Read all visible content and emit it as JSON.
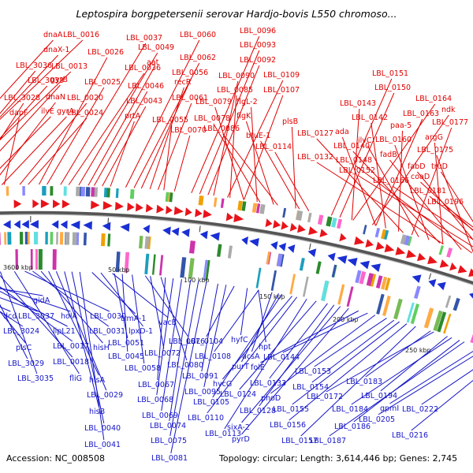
{
  "title": "Leptospira borgpetersenii serovar Hardjo-bovis L550 chromoso...",
  "accession": "Accession: NC_008508",
  "stats": "Topology: circular; Length: 3,614,446 bp; Genes: 2,745",
  "colors": {
    "forward": "#e8141a",
    "reverse": "#1a2fd4",
    "backbone": "#777777",
    "label_fwd": "#e00000",
    "label_rev": "#1414c8"
  },
  "ticks": [
    "3600 kbp",
    "50 kbp",
    "100 kbp",
    "150 kbp",
    "200 kbp",
    "250 kbp"
  ],
  "forward_labels": [
    "dnaA",
    "LBL_0016",
    "dnaX-1",
    "LBL_3036",
    "LBL_0013",
    "LBL_3033",
    "gyrB",
    "LBL_3028",
    "ilvE",
    "dnaN",
    "gyrA",
    "dapF",
    "LBL_0020",
    "LBL_0024",
    "LBL_0026",
    "LBL_0025",
    "LBL_0037",
    "LBL_0036",
    "LBL_0049",
    "aat",
    "LBL_0046",
    "LBL_0043",
    "prtA",
    "LBL_0060",
    "LBL_0062",
    "LBL_0056",
    "recR",
    "LBL_0061",
    "LBL_0055",
    "LBL_0070",
    "LBL_0096",
    "LBL_0093",
    "LBL_0092",
    "LBL_0090",
    "LBL_0109",
    "LBL_0085",
    "LBL_0107",
    "LBL_0079",
    "flgL-2",
    "LBL_0078",
    "flgK",
    "LBL_0086",
    "plsB",
    "btuE-1",
    "LBL_0114",
    "LBL_0151",
    "LBL_0150",
    "LBL_0164",
    "LBL_0143",
    "ndk",
    "LBL_0163",
    "ada",
    "LBL_0142",
    "paa-5",
    "LBL_0177",
    "LBL_0127",
    "ilvC",
    "LBL_0160",
    "argG",
    "LBL_0140",
    "LBL_0132",
    "fadB",
    "LBL_0175",
    "LBL_0148",
    "fabD",
    "truD",
    "LBL_0152",
    "coaD",
    "LBL_0166",
    "LBL_0181",
    "LBL_0196"
  ],
  "reverse_labels": [
    "gidA",
    "dcd",
    "LBL_3037",
    "LBL_3024",
    "holA",
    "lipL21",
    "plsC",
    "LBL_0017",
    "LBL_3029",
    "LBL_0018",
    "LBL_3035",
    "fliG",
    "LBL_0030",
    "LBL_0031",
    "hisH",
    "hisA",
    "LBL_0029",
    "hisB",
    "LBL_0040",
    "LBL_0041",
    "trmA-1",
    "lpxD-1",
    "vacB",
    "LBL_0051",
    "LBL_0045",
    "LBL_0058",
    "LBL_0076",
    "LBL_0072",
    "LBL_0080",
    "LBL_0067",
    "LBL_0068",
    "LBL_0069",
    "LBL_0074",
    "LBL_0075",
    "LBL_0081",
    "LBL_0091",
    "LBL_0095",
    "LBL_0104",
    "hyfC",
    "hpt",
    "LBL_0108",
    "acsA",
    "purT",
    "LBL_0105",
    "hycG",
    "LBL_0110",
    "LBL_0113",
    "LBL_0124",
    "LBL_0133",
    "LBL_0128",
    "sixA-2",
    "pyrD",
    "folE",
    "LBL_0144",
    "phoD",
    "LBL_0153",
    "LBL_0154",
    "LBL_0155",
    "LBL_0156",
    "LBL_0157",
    "LBL_0183",
    "LBL_0172",
    "LBL_0194",
    "LBL_0184",
    "LBL_0186",
    "LBL_0187",
    "gpmI",
    "LBL_0205",
    "LBL_0222",
    "LBL_0216"
  ]
}
